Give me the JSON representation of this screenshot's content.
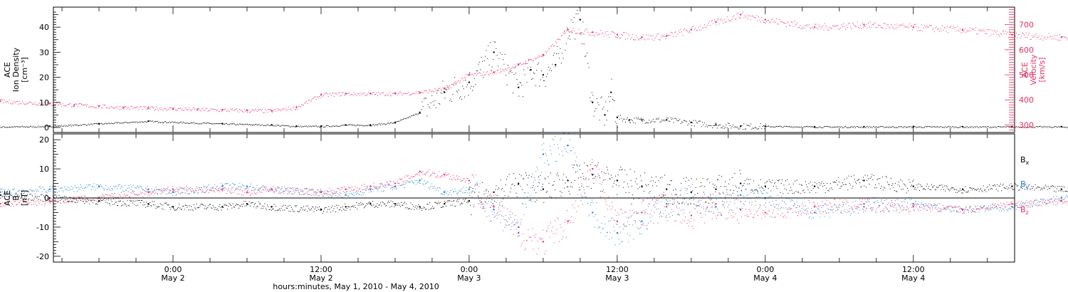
{
  "chart_data": [
    {
      "type": "scatter",
      "ylabel_left": [
        "ACE",
        "Ion Density",
        "[cm⁻³]"
      ],
      "ylabel_right": [
        "ACE",
        "Velocity",
        "[km/s]"
      ],
      "ylim_left": [
        -2,
        48
      ],
      "ylim_right": [
        270,
        770
      ],
      "yticks_left": [
        0,
        10,
        20,
        30,
        40
      ],
      "yticks_right": [
        300,
        400,
        500,
        600,
        700
      ],
      "colors": {
        "density": "#000000",
        "velocity": "#e8305f"
      },
      "series": [
        {
          "axis": "left",
          "color": "#000000",
          "x_hours": [
            -18,
            -10,
            -6,
            -2,
            4,
            8,
            10,
            12,
            14,
            16,
            18,
            20,
            22,
            24,
            26,
            28,
            29,
            30,
            31,
            32,
            33,
            34,
            35,
            35.5,
            36,
            37,
            38,
            40,
            42,
            44,
            46,
            48,
            52,
            56,
            60,
            64,
            68,
            72,
            76,
            80,
            84,
            88,
            89.5
          ],
          "values": [
            0,
            0.5,
            1.5,
            2.5,
            1.5,
            1,
            0.5,
            0.5,
            1,
            1,
            2,
            6,
            14,
            18,
            30,
            16,
            23,
            21,
            25,
            39,
            43,
            10,
            5,
            14,
            4,
            3,
            3,
            3,
            2,
            1,
            0.5,
            0.5,
            0.3,
            0.3,
            0.3,
            0.3,
            0.3,
            0.3,
            0.3,
            0.3,
            0.3,
            0.5,
            0.5
          ]
        },
        {
          "axis": "right",
          "color": "#e8305f",
          "x_hours": [
            -18,
            -14,
            -10,
            -8,
            -6,
            -4,
            -2,
            0,
            2,
            4,
            6,
            8,
            10,
            12,
            14,
            16,
            18,
            20,
            22,
            24,
            26,
            28,
            30,
            32,
            34,
            36,
            38,
            40,
            42,
            44,
            46,
            48,
            52,
            56,
            60,
            64,
            68,
            72,
            76,
            80,
            84,
            88,
            89.5
          ],
          "values": [
            400,
            395,
            385,
            380,
            375,
            370,
            368,
            365,
            362,
            360,
            358,
            356,
            370,
            420,
            425,
            425,
            425,
            430,
            445,
            500,
            510,
            540,
            580,
            680,
            670,
            660,
            650,
            655,
            680,
            710,
            740,
            720,
            690,
            700,
            690,
            680,
            660,
            650,
            670,
            650,
            640,
            650,
            660
          ]
        }
      ]
    },
    {
      "type": "scatter",
      "ylabel": [
        "ACE",
        "B",
        "[nT]"
      ],
      "ylim": [
        -22,
        22
      ],
      "yticks": [
        -20,
        -10,
        0,
        10,
        20
      ],
      "zero_line": true,
      "legend_position": "right",
      "legend": [
        {
          "text": "B",
          "sub": "x",
          "color": "#000000"
        },
        {
          "text": "B",
          "sub": "y",
          "color": "#1e7fd8"
        },
        {
          "text": "B",
          "sub": "z",
          "color": "#e8305f"
        }
      ],
      "series": [
        {
          "color": "#000000",
          "x_hours": [
            -18,
            -14,
            -10,
            -6,
            -2,
            0,
            4,
            6,
            8,
            12,
            14,
            16,
            18,
            20,
            22,
            24,
            26,
            28,
            30,
            32,
            34,
            36,
            38,
            40,
            42,
            44,
            46,
            48,
            52,
            56,
            60,
            64,
            68,
            72,
            76,
            80,
            84,
            88,
            89.5
          ],
          "values": [
            2,
            1,
            0,
            -1,
            -2,
            -3,
            -3,
            -2,
            -3,
            -4,
            -3,
            -2,
            -2,
            -3,
            -2,
            -1,
            2,
            5,
            3,
            6,
            8,
            6,
            4,
            3,
            2,
            3,
            5,
            4,
            4,
            6,
            4,
            3,
            4,
            3,
            3,
            2,
            2,
            2,
            1
          ]
        },
        {
          "color": "#1e7fd8",
          "x_hours": [
            -18,
            -14,
            -10,
            -6,
            -2,
            0,
            4,
            6,
            8,
            12,
            14,
            16,
            18,
            20,
            22,
            24,
            26,
            28,
            30,
            32,
            34,
            36,
            38,
            40,
            42,
            44,
            46,
            48,
            52,
            56,
            60,
            64,
            68,
            72,
            76,
            80,
            84,
            88,
            89.5
          ],
          "values": [
            1,
            2,
            3,
            4,
            3,
            2,
            4,
            4,
            3,
            2,
            1,
            3,
            4,
            6,
            2,
            3,
            -4,
            -10,
            15,
            18,
            -5,
            -12,
            -8,
            -2,
            0,
            -3,
            1,
            0,
            -5,
            -3,
            -2,
            -4,
            -3,
            0,
            -2,
            -1,
            -2,
            -2,
            -3
          ]
        },
        {
          "color": "#e8305f",
          "x_hours": [
            -18,
            -14,
            -10,
            -6,
            -2,
            0,
            4,
            6,
            8,
            12,
            14,
            16,
            18,
            20,
            22,
            24,
            26,
            28,
            30,
            32,
            34,
            36,
            38,
            40,
            42,
            44,
            46,
            48,
            52,
            56,
            60,
            64,
            68,
            72,
            76,
            80,
            84,
            88,
            89.5
          ],
          "values": [
            -2,
            -2,
            -1,
            0,
            2,
            3,
            3,
            2,
            3,
            2,
            3,
            4,
            5,
            9,
            8,
            6,
            -3,
            -12,
            -15,
            -8,
            10,
            -8,
            -5,
            -3,
            -6,
            -2,
            -4,
            -5,
            -3,
            -2,
            -3,
            -4,
            -2,
            -1,
            -3,
            -2,
            -3,
            -2,
            -2
          ]
        }
      ]
    }
  ],
  "x_axis": {
    "ticks": [
      {
        "hours": 0,
        "time": "0:00",
        "day": "May 2"
      },
      {
        "hours": 12,
        "time": "12:00",
        "day": "May 2"
      },
      {
        "hours": 24,
        "time": "0:00",
        "day": "May 3"
      },
      {
        "hours": 36,
        "time": "12:00",
        "day": "May 3"
      },
      {
        "hours": 48,
        "time": "0:00",
        "day": "May 4"
      },
      {
        "hours": 60,
        "time": "12:00",
        "day": "May 4"
      }
    ],
    "label": "hours:minutes,  May  1, 2010 - May  4, 2010"
  }
}
